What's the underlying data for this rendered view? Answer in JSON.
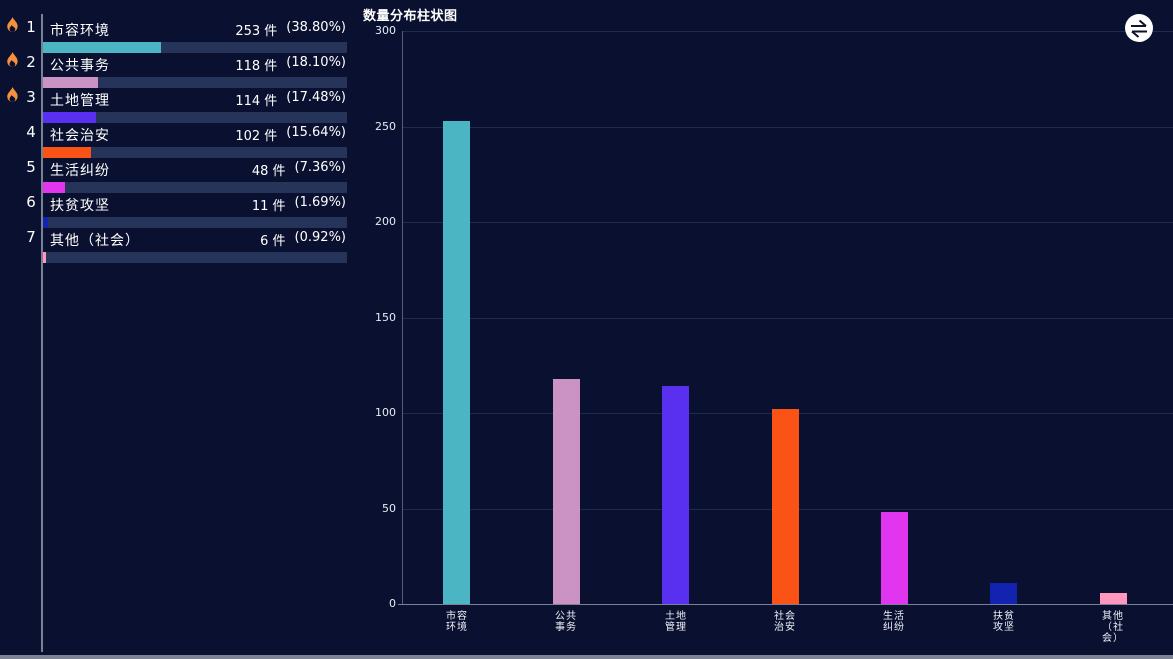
{
  "colors": {
    "background": "#0a1130",
    "panel_divider": "#8e95a7",
    "bottom_bar": "#7d8393",
    "track": "#273459",
    "grid_line": "#1d2a52",
    "y_axis_line": "#565f78",
    "x_axis_line": "#7b8295",
    "tick_text": "#e8ebf2",
    "label_text": "#ffffff",
    "flame": "#f5913d"
  },
  "ranking": {
    "items": [
      {
        "rank": "1",
        "hot": true,
        "label": "市容环境",
        "count_text": "253 件",
        "percent_text": "(38.80%)",
        "percent": 38.8,
        "color": "#4cb5c4"
      },
      {
        "rank": "2",
        "hot": true,
        "label": "公共事务",
        "count_text": "118 件",
        "percent_text": "(18.10%)",
        "percent": 18.1,
        "color": "#ca93c4"
      },
      {
        "rank": "3",
        "hot": true,
        "label": "土地管理",
        "count_text": "114 件",
        "percent_text": "(17.48%)",
        "percent": 17.48,
        "color": "#5a30f0"
      },
      {
        "rank": "4",
        "hot": false,
        "label": "社会治安",
        "count_text": "102 件",
        "percent_text": "(15.64%)",
        "percent": 15.64,
        "color": "#fb5316"
      },
      {
        "rank": "5",
        "hot": false,
        "label": "生活纠纷",
        "count_text": "48 件",
        "percent_text": "(7.36%)",
        "percent": 7.36,
        "color": "#e135f0"
      },
      {
        "rank": "6",
        "hot": false,
        "label": "扶贫攻坚",
        "count_text": "11 件",
        "percent_text": "(1.69%)",
        "percent": 1.69,
        "color": "#1123af"
      },
      {
        "rank": "7",
        "hot": false,
        "label": "其他（社会）",
        "count_text": "6 件",
        "percent_text": "(0.92%)",
        "percent": 0.92,
        "color": "#ff97be"
      }
    ]
  },
  "chart_data": {
    "type": "bar",
    "title": "数量分布柱状图",
    "categories": [
      "市容环境",
      "公共事务",
      "土地管理",
      "社会治安",
      "生活纠纷",
      "扶贫攻坚",
      "其他(社会)"
    ],
    "category_label_lines": [
      [
        "市容",
        "环境"
      ],
      [
        "公共",
        "事务"
      ],
      [
        "土地",
        "管理"
      ],
      [
        "社会",
        "治安"
      ],
      [
        "生活",
        "纠纷"
      ],
      [
        "扶贫",
        "攻坚"
      ],
      [
        "其他",
        "（社",
        "会）"
      ]
    ],
    "values": [
      253,
      118,
      114,
      102,
      48,
      11,
      6
    ],
    "bar_colors": [
      "#4cb5c4",
      "#ca93c4",
      "#5a30f0",
      "#fb5316",
      "#e135f0",
      "#1123af",
      "#ff97be"
    ],
    "xlabel": "",
    "ylabel": "",
    "ylim": [
      0,
      300
    ],
    "yticks": [
      0,
      50,
      100,
      150,
      200,
      250,
      300
    ],
    "grid": true,
    "legend": false,
    "toolbox_icon": "swap-arrows-icon"
  }
}
